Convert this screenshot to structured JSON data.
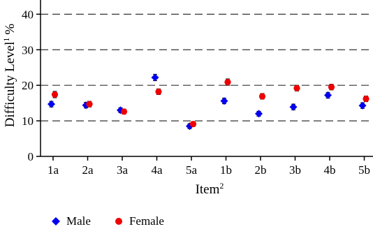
{
  "chart_data": {
    "type": "scatter",
    "categories": [
      "1a",
      "2a",
      "3a",
      "4a",
      "5a",
      "1b",
      "2b",
      "3b",
      "4b",
      "5b"
    ],
    "series": [
      {
        "name": "Male",
        "marker": "diamond",
        "color": "#0000ee",
        "values": [
          14.7,
          14.4,
          13.0,
          22.2,
          8.5,
          15.6,
          12.0,
          13.9,
          17.2,
          14.3
        ],
        "error": [
          0.8,
          0.8,
          0.7,
          0.9,
          0.7,
          0.8,
          0.7,
          0.8,
          0.8,
          0.8
        ]
      },
      {
        "name": "Female",
        "marker": "circle",
        "color": "#ee0000",
        "values": [
          17.4,
          14.7,
          12.6,
          18.2,
          9.1,
          20.9,
          16.9,
          19.2,
          19.5,
          16.2
        ],
        "error": [
          0.9,
          0.8,
          0.7,
          0.8,
          0.7,
          0.9,
          0.8,
          0.8,
          0.8,
          0.8
        ]
      }
    ],
    "xlabel": "Item",
    "xlabel_superscript": "2",
    "ylabel": "Difficulty Level",
    "ylabel_superscript": "1",
    "ylabel_unit": "%",
    "ylim": [
      0,
      44
    ],
    "yticks": [
      0,
      10,
      20,
      30,
      40
    ],
    "grid": "horizontal dashed at 10, 20, 30, 40",
    "legend_position": "bottom-left"
  }
}
